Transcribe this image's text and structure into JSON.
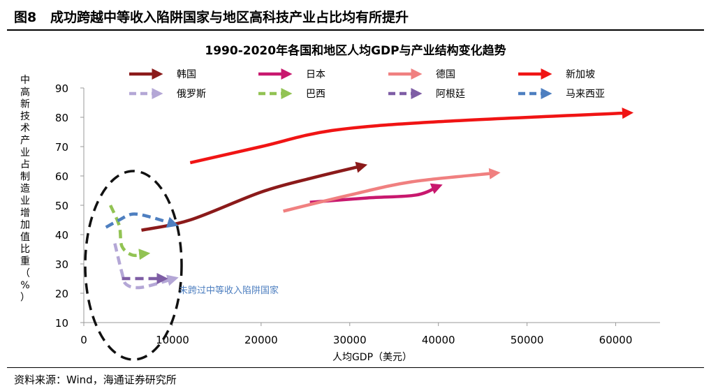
{
  "figure": {
    "number": "图8",
    "caption": "成功跨越中等收入陷阱国家与地区高科技产业占比均有所提升",
    "source": "资料来源：Wind，海通证券研究所"
  },
  "chart_data": {
    "type": "line",
    "title": "1990-2020年各国和地区人均GDP与产业结构变化趋势",
    "xlabel": "人均GDP（美元）",
    "ylabel": "中高新技术产业占制造业增加值比重（%）",
    "xlim": [
      0,
      65000
    ],
    "ylim": [
      10,
      90
    ],
    "xticks": [
      0,
      10000,
      20000,
      30000,
      40000,
      50000,
      60000
    ],
    "yticks": [
      10,
      20,
      30,
      40,
      50,
      60,
      70,
      80,
      90
    ],
    "grid": false,
    "legend_position": "top",
    "series": [
      {
        "name": "韩国",
        "color": "#8B1A1A",
        "dashed": false,
        "points": [
          [
            6500,
            41.5
          ],
          [
            12000,
            45
          ],
          [
            20000,
            54.5
          ],
          [
            26000,
            59.5
          ],
          [
            31500,
            63.5
          ]
        ]
      },
      {
        "name": "日本",
        "color": "#C8186E",
        "dashed": false,
        "points": [
          [
            25500,
            51
          ],
          [
            32000,
            52.5
          ],
          [
            37500,
            53.5
          ],
          [
            40000,
            56.5
          ]
        ]
      },
      {
        "name": "德国",
        "color": "#F08080",
        "dashed": false,
        "points": [
          [
            22500,
            48
          ],
          [
            30000,
            53.5
          ],
          [
            37000,
            58
          ],
          [
            46500,
            61
          ]
        ]
      },
      {
        "name": "新加坡",
        "color": "#F01414",
        "dashed": false,
        "points": [
          [
            12000,
            64.5
          ],
          [
            20000,
            70
          ],
          [
            28000,
            75.5
          ],
          [
            40000,
            78.5
          ],
          [
            61500,
            81.5
          ]
        ]
      },
      {
        "name": "俄罗斯",
        "color": "#B4A7D6",
        "dashed": true,
        "points": [
          [
            3500,
            37
          ],
          [
            4300,
            27
          ],
          [
            4800,
            23
          ],
          [
            6500,
            22
          ],
          [
            10200,
            25
          ]
        ]
      },
      {
        "name": "巴西",
        "color": "#92C353",
        "dashed": true,
        "points": [
          [
            3000,
            50
          ],
          [
            4000,
            43
          ],
          [
            4300,
            36
          ],
          [
            5500,
            33
          ],
          [
            7000,
            33.5
          ]
        ]
      },
      {
        "name": "阿根廷",
        "color": "#7E5DA5",
        "dashed": true,
        "points": [
          [
            4300,
            25
          ],
          [
            6000,
            25
          ],
          [
            9000,
            25
          ]
        ]
      },
      {
        "name": "马来西亚",
        "color": "#4E7FC0",
        "dashed": true,
        "points": [
          [
            2500,
            42.5
          ],
          [
            4000,
            45
          ],
          [
            5500,
            47
          ],
          [
            7500,
            46
          ],
          [
            10200,
            43.5
          ]
        ]
      }
    ],
    "annotations": [
      {
        "text": "未跨过中等收入陷阱国家",
        "color": "#4E7FC0"
      }
    ]
  }
}
